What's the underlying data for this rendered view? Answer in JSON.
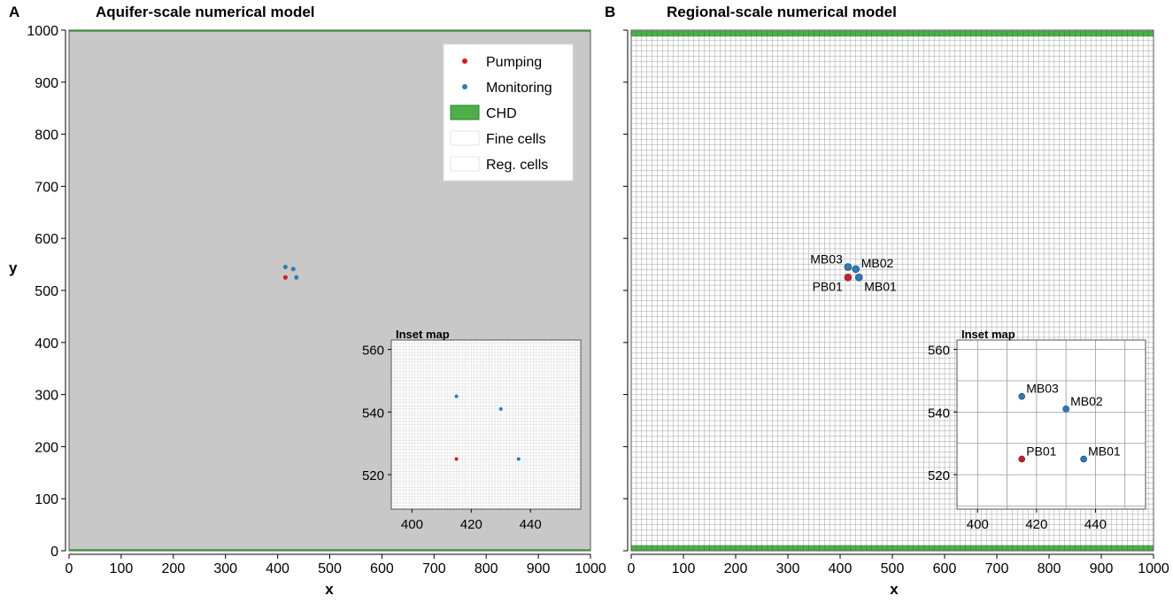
{
  "chart_data": [
    {
      "type": "scatter",
      "panel_letter": "A",
      "title": "Aquifer-scale numerical model",
      "xlabel": "x",
      "ylabel": "y",
      "xlim": [
        0,
        1000
      ],
      "ylim": [
        0,
        1000
      ],
      "x_ticks": [
        "0",
        "100",
        "200",
        "300",
        "400",
        "500",
        "600",
        "700",
        "800",
        "900",
        "1000"
      ],
      "y_ticks": [
        "0",
        "100",
        "200",
        "300",
        "400",
        "500",
        "600",
        "700",
        "800",
        "900",
        "1000"
      ],
      "grid": "fine cells (dense, renders grey)",
      "chd_boundaries_y": [
        0,
        1000
      ],
      "points": [
        {
          "name": "PB01",
          "type": "Pumping",
          "x": 415,
          "y": 525
        },
        {
          "name": "MB01",
          "type": "Monitoring",
          "x": 436,
          "y": 525
        },
        {
          "name": "MB02",
          "type": "Monitoring",
          "x": 430,
          "y": 541
        },
        {
          "name": "MB03",
          "type": "Monitoring",
          "x": 415,
          "y": 545
        }
      ],
      "legend": {
        "placement": "top-right",
        "entries": [
          {
            "label": "Pumping",
            "symbol": "dot",
            "color": "#d7191c"
          },
          {
            "label": "Monitoring",
            "symbol": "dot",
            "color": "#2c7bb6"
          },
          {
            "label": "CHD",
            "symbol": "box",
            "color": "#4daf4a"
          },
          {
            "label": "Fine cells",
            "symbol": "box",
            "color": "#ffffff"
          },
          {
            "label": "Reg. cells",
            "symbol": "box",
            "color": "#ffffff"
          }
        ]
      },
      "inset": {
        "title": "Inset map",
        "xlim": [
          393,
          457
        ],
        "ylim": [
          509,
          563
        ],
        "x_ticks": [
          "400",
          "420",
          "440"
        ],
        "y_ticks": [
          "520",
          "540",
          "560"
        ],
        "grid_spacing": 1,
        "show_labels": false
      }
    },
    {
      "type": "scatter",
      "panel_letter": "B",
      "title": "Regional-scale numerical model",
      "xlabel": "x",
      "ylabel": "",
      "xlim": [
        0,
        1000
      ],
      "ylim": [
        0,
        1000
      ],
      "x_ticks": [
        "0",
        "100",
        "200",
        "300",
        "400",
        "500",
        "600",
        "700",
        "800",
        "900",
        "1000"
      ],
      "y_ticks": [],
      "grid": "regional cells (10 m)",
      "grid_spacing": 10,
      "chd_boundaries_y": [
        0,
        1000
      ],
      "points": [
        {
          "name": "PB01",
          "type": "Pumping",
          "x": 415,
          "y": 525
        },
        {
          "name": "MB01",
          "type": "Monitoring",
          "x": 436,
          "y": 525
        },
        {
          "name": "MB02",
          "type": "Monitoring",
          "x": 430,
          "y": 541
        },
        {
          "name": "MB03",
          "type": "Monitoring",
          "x": 415,
          "y": 545
        }
      ],
      "inset": {
        "title": "Inset map",
        "xlim": [
          393,
          457
        ],
        "ylim": [
          509,
          563
        ],
        "x_ticks": [
          "400",
          "420",
          "440"
        ],
        "y_ticks": [
          "520",
          "540",
          "560"
        ],
        "grid_spacing": 10,
        "show_labels": true
      }
    }
  ],
  "colors": {
    "pumping": "#d7191c",
    "monitoring": "#2c7bb6",
    "chd": "#4daf4a",
    "chd_edge": "#2e7d32",
    "fine_fill": "#c8c8c8",
    "grid_line": "#a0a0a0",
    "frame": "#555555"
  }
}
